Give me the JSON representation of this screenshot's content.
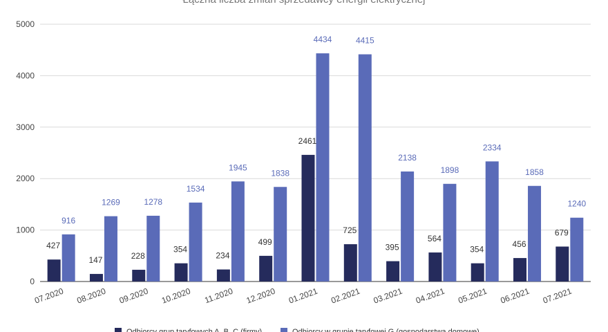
{
  "chart_data": {
    "type": "bar",
    "title": "Łączna liczba zmian sprzedawcy energii elektrycznej",
    "categories": [
      "07.2020",
      "08.2020",
      "09.2020",
      "10.2020",
      "11.2020",
      "12.2020",
      "01.2021",
      "02.2021",
      "03.2021",
      "04.2021",
      "05.2021",
      "06.2021",
      "07.2021"
    ],
    "series": [
      {
        "name": "Odbiorcy grup taryfowych A, B, C (firmy)",
        "color": "#252b5c",
        "label_color": "#333333",
        "values": [
          427,
          147,
          228,
          354,
          234,
          499,
          2461,
          725,
          395,
          564,
          354,
          456,
          679
        ]
      },
      {
        "name": "Odbiorcy w grupie taryfowej G (gospodarstwa domowe)",
        "color": "#5a6bb8",
        "label_color": "#5a6bb8",
        "values": [
          916,
          1269,
          1278,
          1534,
          1945,
          1838,
          4434,
          4415,
          2138,
          1898,
          2334,
          1858,
          1240
        ]
      }
    ],
    "yticks": [
      "0",
      "1000",
      "2000",
      "3000",
      "4000",
      "5000"
    ],
    "ylim": [
      0,
      5000
    ],
    "xlabel": "",
    "ylabel": "",
    "grid": true,
    "legend_position": "bottom"
  }
}
